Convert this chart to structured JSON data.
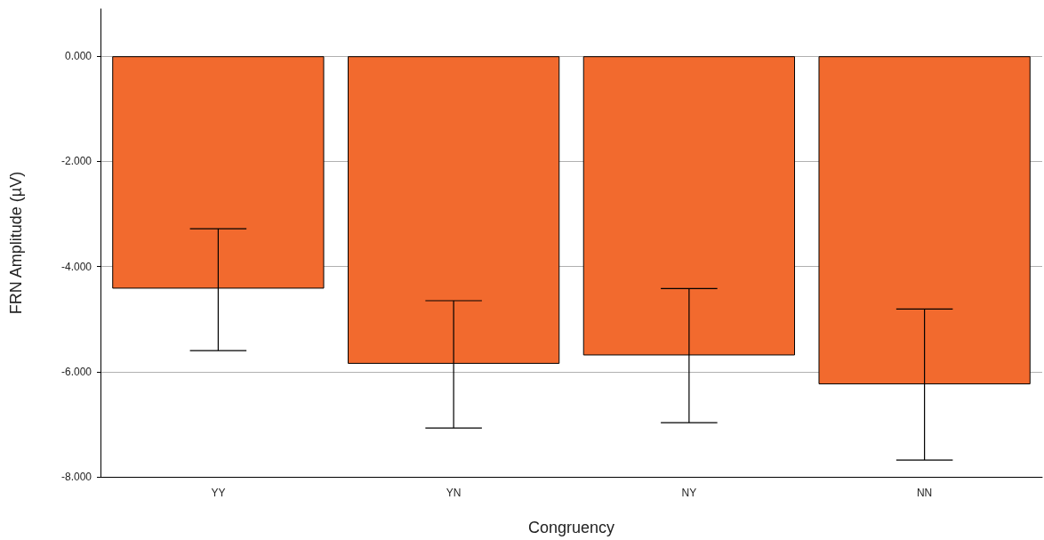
{
  "chart_data": {
    "type": "bar",
    "xlabel": "Congruency",
    "ylabel": "FRN Amplitude (µV)",
    "categories": [
      "YY",
      "YN",
      "NY",
      "NN"
    ],
    "values": [
      -4.42,
      -5.85,
      -5.69,
      -6.24
    ],
    "errors": [
      [
        -5.6,
        -3.28
      ],
      [
        -7.07,
        -4.65
      ],
      [
        -6.97,
        -4.42
      ],
      [
        -7.68,
        -4.81
      ]
    ],
    "color": "#f26a2e",
    "ylim": [
      -8,
      0.9
    ],
    "yticks": [
      {
        "value": -8,
        "label": "-8.000"
      },
      {
        "value": -6,
        "label": "-6.000"
      },
      {
        "value": -4,
        "label": "-4.000"
      },
      {
        "value": -2,
        "label": "-2.000"
      },
      {
        "value": 0,
        "label": "0.000"
      }
    ],
    "grid": "y"
  }
}
